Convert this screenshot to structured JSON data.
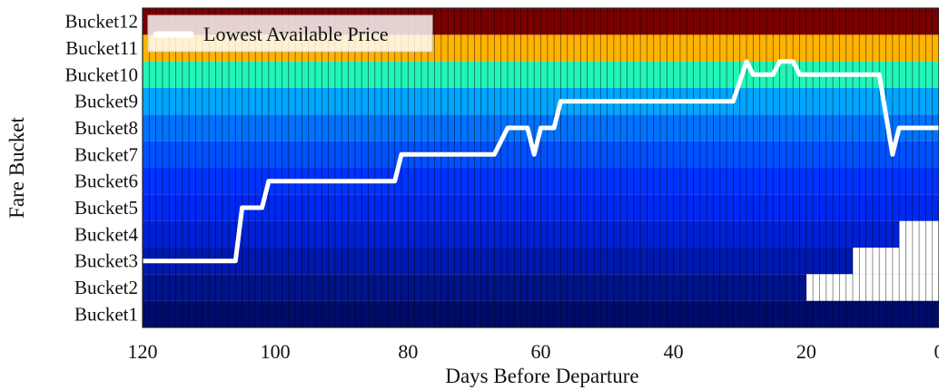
{
  "chart_data": {
    "type": "heatmap",
    "title": "",
    "xlabel": "Days Before Departure",
    "ylabel": "Fare Bucket",
    "xlim": [
      120,
      0
    ],
    "x_ticks": [
      "120",
      "100",
      "80",
      "60",
      "40",
      "20",
      "0"
    ],
    "categories": [
      "Bucket1",
      "Bucket2",
      "Bucket3",
      "Bucket4",
      "Bucket5",
      "Bucket6",
      "Bucket7",
      "Bucket8",
      "Bucket9",
      "Bucket10",
      "Bucket11",
      "Bucket12"
    ],
    "bucket_colors": [
      "#000c6b",
      "#00138a",
      "#0019b0",
      "#0021d4",
      "#0028f2",
      "#0033ff",
      "#0050ff",
      "#0072ff",
      "#00a6ff",
      "#22f5b8",
      "#ffb300",
      "#7a0000"
    ],
    "grid": true,
    "unavailable_buckets": [
      {
        "bucket": "Bucket2",
        "days_before_departure_max": 20
      },
      {
        "bucket": "Bucket3",
        "days_before_departure_max": 13
      },
      {
        "bucket": "Bucket4",
        "days_before_departure_max": 6
      }
    ],
    "series": [
      {
        "name": "Lowest Available Price",
        "color": "#ffffff",
        "x": [
          120,
          106,
          105,
          102,
          101,
          82,
          81,
          67,
          65,
          62,
          61,
          60,
          58,
          57,
          31,
          29,
          28,
          25,
          24,
          22,
          21,
          9,
          8,
          7,
          6,
          0
        ],
        "y": [
          3,
          3,
          5,
          5,
          6,
          6,
          7,
          7,
          8,
          8,
          7,
          8,
          8,
          9,
          9,
          10.5,
          10,
          10,
          10.5,
          10.5,
          10,
          10,
          8.5,
          7,
          8,
          8
        ]
      }
    ],
    "legend": {
      "placement": "top-left",
      "entries": [
        "Lowest Available Price"
      ]
    }
  }
}
